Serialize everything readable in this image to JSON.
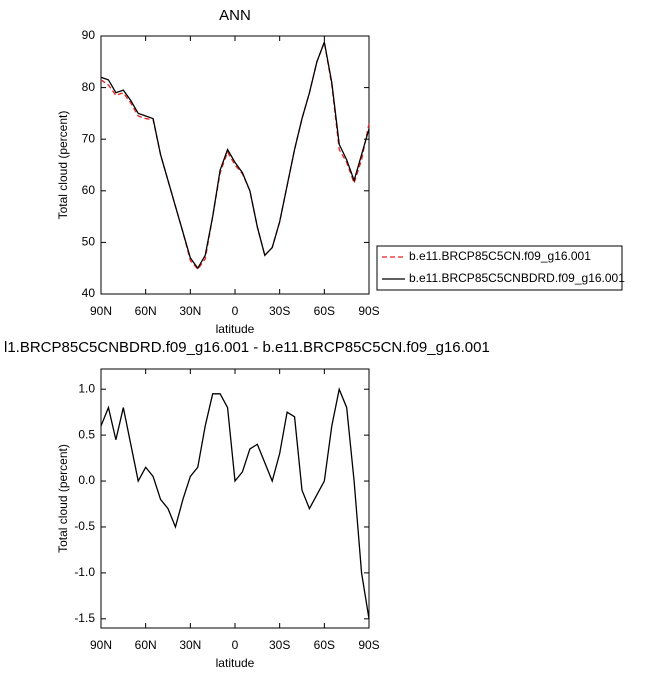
{
  "chart_data": [
    {
      "type": "line",
      "title": "ANN",
      "x_label": "latitude",
      "y_label": "Total cloud (percent)",
      "x": [
        90,
        85,
        80,
        75,
        70,
        65,
        60,
        55,
        50,
        45,
        40,
        35,
        30,
        25,
        20,
        15,
        10,
        5,
        0,
        -5,
        -10,
        -15,
        -20,
        -25,
        -30,
        -35,
        -40,
        -45,
        -50,
        -55,
        -60,
        -65,
        -70,
        -75,
        -80,
        -85,
        -90
      ],
      "xlim": [
        90,
        -90
      ],
      "xticks": [
        {
          "value": 90,
          "label": "90N"
        },
        {
          "value": 60,
          "label": "60N"
        },
        {
          "value": 30,
          "label": "30N"
        },
        0,
        {
          "value": -30,
          "label": "30S"
        },
        {
          "value": -60,
          "label": "60S"
        },
        {
          "value": -90,
          "label": "90S"
        }
      ],
      "ylim": [
        40,
        90
      ],
      "yticks": [
        40,
        50,
        60,
        70,
        80,
        90
      ],
      "legend": "right",
      "series": [
        {
          "name": "b.e11.BRCP85C5CN.f09_g16.001",
          "color": "#e8221f",
          "dash": true,
          "values": [
            81.5,
            80.5,
            78.5,
            79,
            77,
            74.5,
            74,
            73.8,
            67,
            62,
            57,
            52,
            46.5,
            44.8,
            46.8,
            55,
            63.5,
            67.5,
            65,
            63.3,
            60,
            53,
            47.5,
            49,
            54,
            61,
            68,
            74,
            79,
            85,
            88.8,
            80.5,
            68,
            65.5,
            61.5,
            66,
            73
          ]
        },
        {
          "name": "b.e11.BRCP85C5CNBDRD.f09_g16.001",
          "color": "#000000",
          "dash": false,
          "values": [
            82,
            81.5,
            79,
            79.5,
            77.5,
            75,
            74.5,
            74,
            67,
            62,
            57,
            52,
            47,
            45,
            47.5,
            55,
            64,
            68,
            65.5,
            63.5,
            60,
            53,
            47.5,
            49,
            54,
            61,
            68,
            74,
            79,
            85,
            88.8,
            81,
            69,
            66,
            62,
            67,
            72
          ]
        }
      ]
    },
    {
      "type": "line",
      "title": "l1.BRCP85C5CNBDRD.f09_g16.001 - b.e11.BRCP85C5CN.f09_g16.001",
      "x_label": "latitude",
      "y_label": "Total cloud (percent)",
      "x": [
        90,
        85,
        80,
        75,
        70,
        65,
        60,
        55,
        50,
        45,
        40,
        35,
        30,
        25,
        20,
        15,
        10,
        5,
        0,
        -5,
        -10,
        -15,
        -20,
        -25,
        -30,
        -35,
        -40,
        -45,
        -50,
        -55,
        -60,
        -65,
        -70,
        -75,
        -80,
        -85,
        -90
      ],
      "xlim": [
        90,
        -90
      ],
      "xticks": [
        {
          "value": 90,
          "label": "90N"
        },
        {
          "value": 60,
          "label": "60N"
        },
        {
          "value": 30,
          "label": "30N"
        },
        0,
        {
          "value": -30,
          "label": "30S"
        },
        {
          "value": -60,
          "label": "60S"
        },
        {
          "value": -90,
          "label": "90S"
        }
      ],
      "ylim": [
        -1.6,
        1.22
      ],
      "yticks": [
        -1.5,
        {
          "value": -1,
          "label": "-1.0"
        },
        -0.5,
        {
          "value": 0,
          "label": "0.0"
        },
        0.5,
        {
          "value": 1,
          "label": "1.0"
        }
      ],
      "series": [
        {
          "color": "#000000",
          "dash": false,
          "values": [
            0.6,
            0.8,
            0.45,
            0.8,
            0.4,
            0,
            0.15,
            0.05,
            -0.2,
            -0.3,
            -0.5,
            -0.2,
            0.05,
            0.15,
            0.6,
            0.95,
            0.95,
            0.8,
            0,
            0.1,
            0.35,
            0.4,
            0.2,
            0,
            0.3,
            0.75,
            0.7,
            -0.1,
            -0.3,
            -0.15,
            0,
            0.6,
            1,
            0.8,
            0,
            -1,
            -1.5
          ]
        }
      ]
    }
  ]
}
